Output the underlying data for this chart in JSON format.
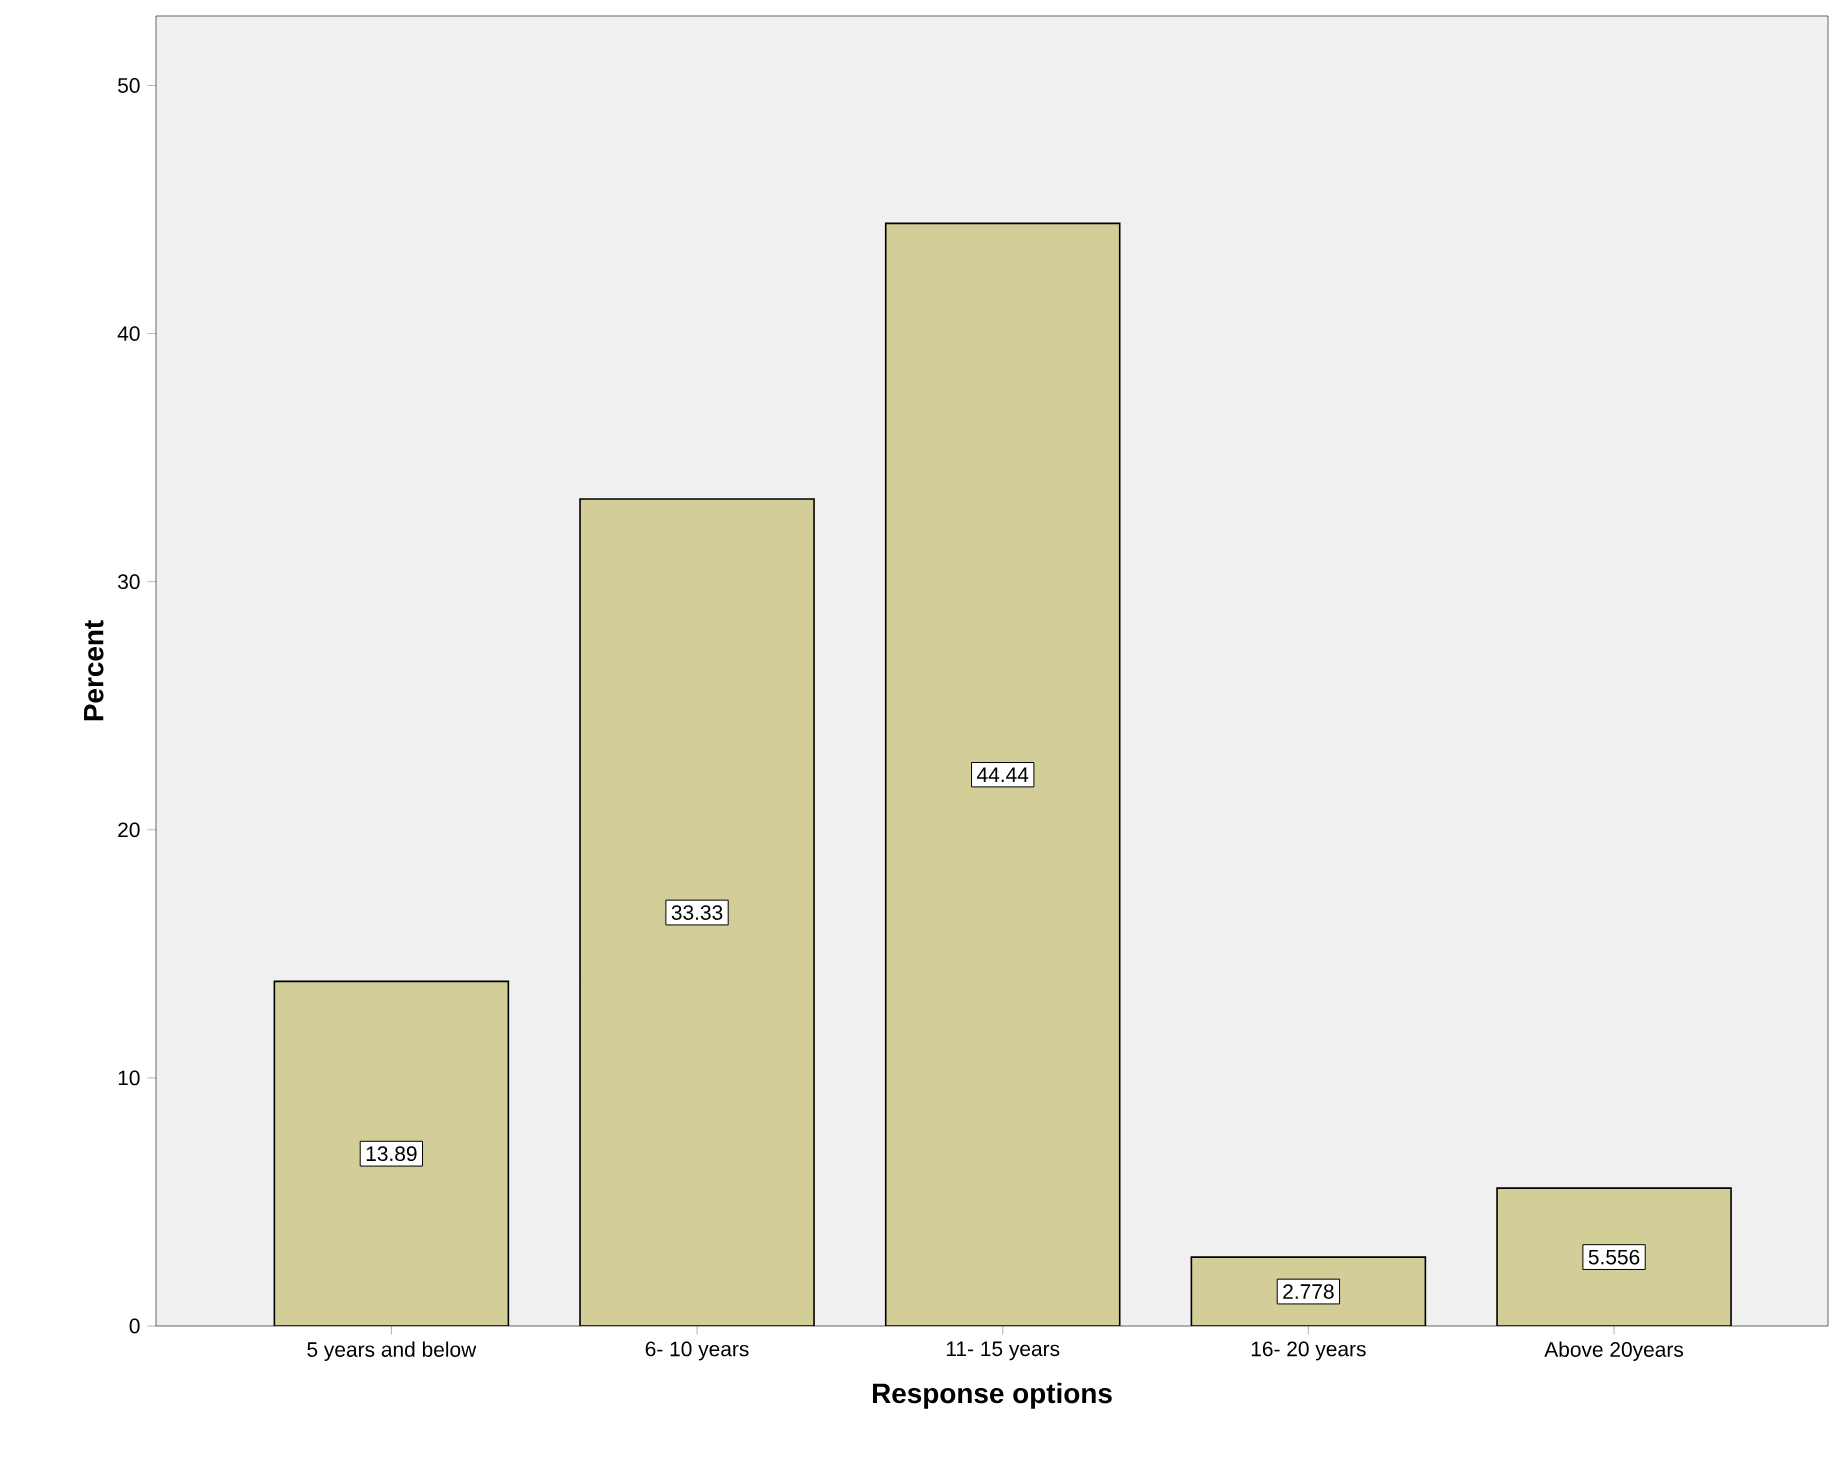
{
  "chart_data": {
    "type": "bar",
    "xlabel": "Response options",
    "ylabel": "Percent",
    "categories": [
      "5 years and below",
      "6- 10 years",
      "11- 15 years",
      "16- 20 years",
      "Above 20years"
    ],
    "values": [
      13.89,
      33.33,
      44.44,
      2.778,
      5.556
    ],
    "color": "#d3ce97",
    "ylim": [
      0,
      52.8
    ],
    "yticks": [
      0,
      10,
      20,
      30,
      40,
      50
    ],
    "data_labels": true
  }
}
